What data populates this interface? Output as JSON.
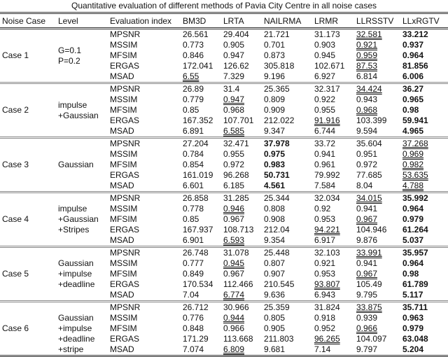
{
  "title": "Quantitative evaluation of different methods of Pavia City Centre in all noise cases",
  "headers": [
    "Noise Case",
    "Level",
    "Evaluation index",
    "BM3D",
    "LRTA",
    "NAILRMA",
    "LRMR",
    "LLRSSTV",
    "LLxRGTV"
  ],
  "cases": [
    {
      "name": "Case 1",
      "level": [
        "G=0.1",
        "P=0.2"
      ],
      "rows": [
        {
          "index": "MPSNR",
          "values": [
            "26.561",
            "29.404",
            "21.721",
            "31.173",
            "32.581",
            "33.212"
          ],
          "bold": 5,
          "underline": 4
        },
        {
          "index": "MSSIM",
          "values": [
            "0.773",
            "0.905",
            "0.701",
            "0.903",
            "0.921",
            "0.937"
          ],
          "bold": 5,
          "underline": 4
        },
        {
          "index": "MFSIM",
          "values": [
            "0.846",
            "0.947",
            "0.873",
            "0.945",
            "0.959",
            "0.964"
          ],
          "bold": 5,
          "underline": 4
        },
        {
          "index": "ERGAS",
          "values": [
            "172.041",
            "126.62",
            "305.818",
            "102.671",
            "87.53",
            "81.856"
          ],
          "bold": 5,
          "underline": 4
        },
        {
          "index": "MSAD",
          "values": [
            "6.55",
            "7.329",
            "9.196",
            "6.927",
            "6.814",
            "6.006"
          ],
          "bold": 5,
          "underline": 0
        }
      ]
    },
    {
      "name": "Case 2",
      "level": [
        "impulse",
        "+Gaussian"
      ],
      "rows": [
        {
          "index": "MPSNR",
          "values": [
            "26.89",
            "31.4",
            "25.365",
            "32.317",
            "34.424",
            "36.27"
          ],
          "bold": 5,
          "underline": 4
        },
        {
          "index": "MSSIM",
          "values": [
            "0.779",
            "0.947",
            "0.809",
            "0.922",
            "0.943",
            "0.965"
          ],
          "bold": 5,
          "underline": 1
        },
        {
          "index": "MFSIM",
          "values": [
            "0.85",
            "0.968",
            "0.909",
            "0.955",
            "0.968",
            "0.98"
          ],
          "bold": 5,
          "underline": 4
        },
        {
          "index": "ERGAS",
          "values": [
            "167.352",
            "107.701",
            "212.022",
            "91.916",
            "103.399",
            "59.941"
          ],
          "bold": 5,
          "underline": 3
        },
        {
          "index": "MSAD",
          "values": [
            "6.891",
            "6.585",
            "9.347",
            "6.744",
            "9.594",
            "4.965"
          ],
          "bold": 5,
          "underline": 1
        }
      ]
    },
    {
      "name": "Case 3",
      "level": [
        "Gaussian"
      ],
      "rows": [
        {
          "index": "MPSNR",
          "values": [
            "27.204",
            "32.471",
            "37.978",
            "33.72",
            "35.604",
            "37.268"
          ],
          "bold": 2,
          "underline": 5
        },
        {
          "index": "MSSIM",
          "values": [
            "0.784",
            "0.955",
            "0.975",
            "0.941",
            "0.951",
            "0.969"
          ],
          "bold": 2,
          "underline": 5
        },
        {
          "index": "MFSIM",
          "values": [
            "0.854",
            "0.972",
            "0.983",
            "0.961",
            "0.972",
            "0.982"
          ],
          "bold": 2,
          "underline": 5
        },
        {
          "index": "ERGAS",
          "values": [
            "161.019",
            "96.268",
            "50.731",
            "79.992",
            "77.685",
            "53.635"
          ],
          "bold": 2,
          "underline": 5
        },
        {
          "index": "MSAD",
          "values": [
            "6.601",
            "6.185",
            "4.561",
            "7.584",
            "8.04",
            "4.788"
          ],
          "bold": 2,
          "underline": 5
        }
      ]
    },
    {
      "name": "Case 4",
      "level": [
        "impulse",
        "+Gaussian",
        "+Stripes"
      ],
      "rows": [
        {
          "index": "MPSNR",
          "values": [
            "26.858",
            "31.285",
            "25.344",
            "32.034",
            "34.015",
            "35.992"
          ],
          "bold": 5,
          "underline": 4
        },
        {
          "index": "MSSIM",
          "values": [
            "0.778",
            "0.946",
            "0.808",
            "0.92",
            "0.941",
            "0.964"
          ],
          "bold": 5,
          "underline": 1
        },
        {
          "index": "MFSIM",
          "values": [
            "0.85",
            "0.967",
            "0.908",
            "0.953",
            "0.967",
            "0.979"
          ],
          "bold": 5,
          "underline": 4
        },
        {
          "index": "ERGAS",
          "values": [
            "167.937",
            "108.713",
            "212.04",
            "94.221",
            "104.946",
            "61.264"
          ],
          "bold": 5,
          "underline": 3
        },
        {
          "index": "MSAD",
          "values": [
            "6.901",
            "6.593",
            "9.354",
            "6.917",
            "9.876",
            "5.037"
          ],
          "bold": 5,
          "underline": 1
        }
      ]
    },
    {
      "name": "Case 5",
      "level": [
        "Gaussian",
        "+impulse",
        "+deadline"
      ],
      "rows": [
        {
          "index": "MPSNR",
          "values": [
            "26.748",
            "31.078",
            "25.448",
            "32.103",
            "33.991",
            "35.957"
          ],
          "bold": 5,
          "underline": 4
        },
        {
          "index": "MSSIM",
          "values": [
            "0.777",
            "0.945",
            "0.807",
            "0.921",
            "0.941",
            "0.964"
          ],
          "bold": 5,
          "underline": 1
        },
        {
          "index": "MFSIM",
          "values": [
            "0.849",
            "0.967",
            "0.907",
            "0.953",
            "0.967",
            "0.98"
          ],
          "bold": 5,
          "underline": 4
        },
        {
          "index": "ERGAS",
          "values": [
            "170.534",
            "112.466",
            "210.545",
            "93.807",
            "105.49",
            "61.789"
          ],
          "bold": 5,
          "underline": 3
        },
        {
          "index": "MSAD",
          "values": [
            "7.04",
            "6.774",
            "9.636",
            "6.943",
            "9.795",
            "5.117"
          ],
          "bold": 5,
          "underline": 1
        }
      ]
    },
    {
      "name": "Case 6",
      "level": [
        "Gaussian",
        "+impulse",
        "+deadline",
        "+stripe"
      ],
      "rows": [
        {
          "index": "MPSNR",
          "values": [
            "26.712",
            "30.966",
            "25.359",
            "31.824",
            "33.875",
            "35.711"
          ],
          "bold": 5,
          "underline": 4
        },
        {
          "index": "MSSIM",
          "values": [
            "0.776",
            "0.944",
            "0.805",
            "0.918",
            "0.939",
            "0.963"
          ],
          "bold": 5,
          "underline": 1
        },
        {
          "index": "MFSIM",
          "values": [
            "0.848",
            "0.966",
            "0.905",
            "0.952",
            "0.966",
            "0.979"
          ],
          "bold": 5,
          "underline": 4
        },
        {
          "index": "ERGAS",
          "values": [
            "171.29",
            "113.668",
            "211.803",
            "96.265",
            "104.097",
            "63.048"
          ],
          "bold": 5,
          "underline": 3
        },
        {
          "index": "MSAD",
          "values": [
            "7.074",
            "6.809",
            "9.681",
            "7.14",
            "9.797",
            "5.204"
          ],
          "bold": 5,
          "underline": 1
        }
      ]
    }
  ]
}
